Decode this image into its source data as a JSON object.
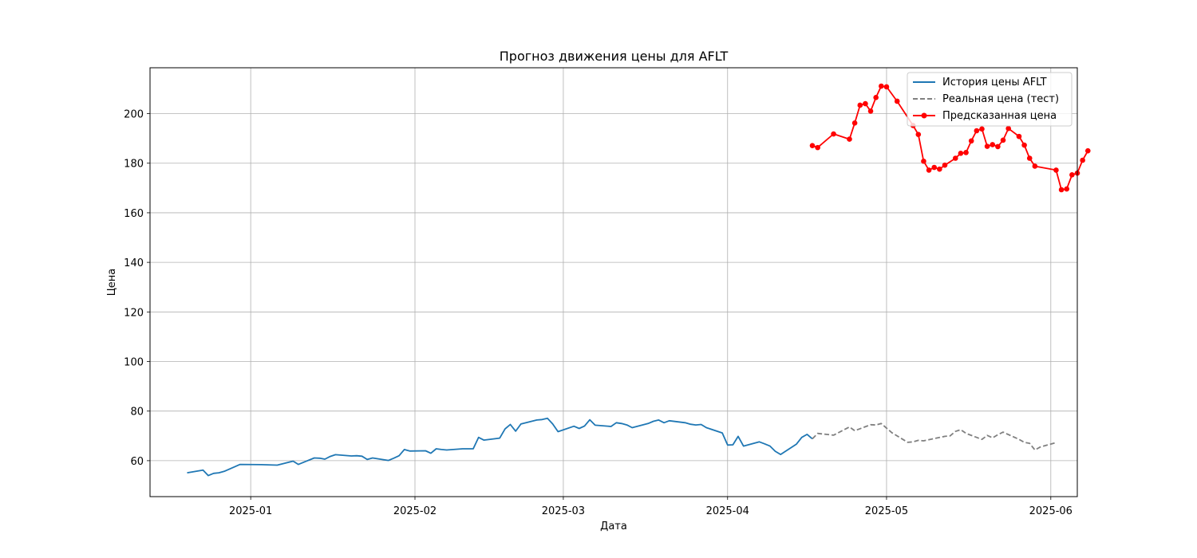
{
  "chart_data": {
    "type": "line",
    "title": "Прогноз движения цены для AFLT",
    "xlabel": "Дата",
    "ylabel": "Цена",
    "ylim": [
      45.5,
      218.5
    ],
    "xlim": [
      "2024-12-13",
      "2025-06-06"
    ],
    "y_ticks": [
      60,
      80,
      100,
      120,
      140,
      160,
      180,
      200
    ],
    "x_ticks": [
      "2025-01-01",
      "2025-02-01",
      "2025-03-01",
      "2025-04-01",
      "2025-05-01",
      "2025-06-01"
    ],
    "x_tick_labels": [
      "2025-01",
      "2025-02",
      "2025-03",
      "2025-04",
      "2025-05",
      "2025-06"
    ],
    "grid": true,
    "legend_position": "top-right",
    "series": [
      {
        "name": "История цены AFLT",
        "style": "solid",
        "color": "#1f77b4",
        "x": [
          "2024-12-20",
          "2024-12-23",
          "2024-12-24",
          "2024-12-25",
          "2024-12-26",
          "2024-12-27",
          "2024-12-30",
          "2025-01-03",
          "2025-01-06",
          "2025-01-09",
          "2025-01-10",
          "2025-01-13",
          "2025-01-14",
          "2025-01-15",
          "2025-01-16",
          "2025-01-17",
          "2025-01-20",
          "2025-01-21",
          "2025-01-22",
          "2025-01-23",
          "2025-01-24",
          "2025-01-27",
          "2025-01-28",
          "2025-01-29",
          "2025-01-30",
          "2025-01-31",
          "2025-02-03",
          "2025-02-04",
          "2025-02-05",
          "2025-02-06",
          "2025-02-07",
          "2025-02-10",
          "2025-02-11",
          "2025-02-12",
          "2025-02-13",
          "2025-02-14",
          "2025-02-17",
          "2025-02-18",
          "2025-02-19",
          "2025-02-20",
          "2025-02-21",
          "2025-02-24",
          "2025-02-25",
          "2025-02-26",
          "2025-02-27",
          "2025-02-28",
          "2025-03-03",
          "2025-03-04",
          "2025-03-05",
          "2025-03-06",
          "2025-03-07",
          "2025-03-10",
          "2025-03-11",
          "2025-03-12",
          "2025-03-13",
          "2025-03-14",
          "2025-03-17",
          "2025-03-18",
          "2025-03-19",
          "2025-03-20",
          "2025-03-21",
          "2025-03-24",
          "2025-03-25",
          "2025-03-26",
          "2025-03-27",
          "2025-03-28",
          "2025-03-31",
          "2025-04-01",
          "2025-04-02",
          "2025-04-03",
          "2025-04-04",
          "2025-04-07",
          "2025-04-08",
          "2025-04-09",
          "2025-04-10",
          "2025-04-11",
          "2025-04-14",
          "2025-04-15",
          "2025-04-16",
          "2025-04-17"
        ],
        "values": [
          55.1,
          56.2,
          54.0,
          54.9,
          55.1,
          55.7,
          58.5,
          58.4,
          58.2,
          59.8,
          58.5,
          61.1,
          61.0,
          60.6,
          61.7,
          62.4,
          61.9,
          62.0,
          61.8,
          60.5,
          61.1,
          60.1,
          61.0,
          62.0,
          64.5,
          63.9,
          64.0,
          63.0,
          64.8,
          64.5,
          64.3,
          64.8,
          64.8,
          64.8,
          69.4,
          68.3,
          69.1,
          72.8,
          74.6,
          71.9,
          74.8,
          76.4,
          76.6,
          77.1,
          74.8,
          71.7,
          73.9,
          73.0,
          74.0,
          76.5,
          74.3,
          73.8,
          75.3,
          75.0,
          74.4,
          73.3,
          75.0,
          75.9,
          76.4,
          75.3,
          76.1,
          75.3,
          74.7,
          74.4,
          74.6,
          73.3,
          71.2,
          66.3,
          66.4,
          69.8,
          65.9,
          67.6,
          66.8,
          65.9,
          63.8,
          62.5,
          66.7,
          69.4,
          70.6,
          68.8
        ]
      },
      {
        "name": "Реальная цена (тест)",
        "style": "dashed",
        "color": "#808080",
        "x": [
          "2025-04-17",
          "2025-04-18",
          "2025-04-21",
          "2025-04-22",
          "2025-04-23",
          "2025-04-24",
          "2025-04-25",
          "2025-04-28",
          "2025-04-29",
          "2025-04-30",
          "2025-05-02",
          "2025-05-05",
          "2025-05-06",
          "2025-05-07",
          "2025-05-08",
          "2025-05-12",
          "2025-05-13",
          "2025-05-14",
          "2025-05-15",
          "2025-05-16",
          "2025-05-19",
          "2025-05-20",
          "2025-05-21",
          "2025-05-22",
          "2025-05-23",
          "2025-05-26",
          "2025-05-27",
          "2025-05-28",
          "2025-05-29",
          "2025-05-30",
          "2025-06-02"
        ],
        "values": [
          68.8,
          71.0,
          70.3,
          71.4,
          72.5,
          73.6,
          72.1,
          74.5,
          74.4,
          75.0,
          71.3,
          67.4,
          67.6,
          68.2,
          68.0,
          69.8,
          70.0,
          71.8,
          72.5,
          71.0,
          68.6,
          70.2,
          69.2,
          70.5,
          71.5,
          68.6,
          67.4,
          67.0,
          64.3,
          65.5,
          67.3
        ]
      },
      {
        "name": "Предсказанная цена",
        "style": "solid-markers",
        "color": "#ff0000",
        "x": [
          "2025-04-17",
          "2025-04-18",
          "2025-04-21",
          "2025-04-24",
          "2025-04-25",
          "2025-04-26",
          "2025-04-27",
          "2025-04-28",
          "2025-04-29",
          "2025-04-30",
          "2025-05-01",
          "2025-05-03",
          "2025-05-06",
          "2025-05-07",
          "2025-05-08",
          "2025-05-09",
          "2025-05-10",
          "2025-05-11",
          "2025-05-12",
          "2025-05-14",
          "2025-05-15",
          "2025-05-16",
          "2025-05-17",
          "2025-05-18",
          "2025-05-19",
          "2025-05-20",
          "2025-05-21",
          "2025-05-22",
          "2025-05-23",
          "2025-05-24",
          "2025-05-26",
          "2025-05-27",
          "2025-05-28",
          "2025-05-29",
          "2025-06-02",
          "2025-06-03",
          "2025-06-04",
          "2025-06-05",
          "2025-06-06",
          "2025-06-07",
          "2025-06-08"
        ],
        "values": [
          187.1,
          186.3,
          191.8,
          189.7,
          196.2,
          203.4,
          204.0,
          201.0,
          206.5,
          211.1,
          210.8,
          205.0,
          195.2,
          191.6,
          180.8,
          177.2,
          178.3,
          177.6,
          179.2,
          182.0,
          184.0,
          184.3,
          189.0,
          193.1,
          193.8,
          186.8,
          187.5,
          186.7,
          189.3,
          194.0,
          190.8,
          187.3,
          182.0,
          178.8,
          177.2,
          169.3,
          169.6,
          175.3,
          176.0,
          181.2,
          185.0
        ]
      }
    ]
  }
}
